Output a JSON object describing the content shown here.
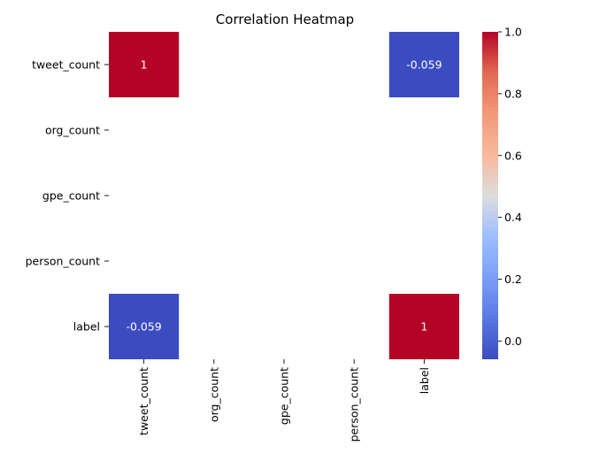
{
  "chart_data": {
    "type": "heatmap",
    "title": "Correlation Heatmap",
    "xlabel": "",
    "ylabel": "",
    "categories": [
      "tweet_count",
      "org_count",
      "gpe_count",
      "person_count",
      "label"
    ],
    "values": [
      [
        1,
        null,
        null,
        null,
        -0.059
      ],
      [
        null,
        null,
        null,
        null,
        null
      ],
      [
        null,
        null,
        null,
        null,
        null
      ],
      [
        null,
        null,
        null,
        null,
        null
      ],
      [
        -0.059,
        null,
        null,
        null,
        1
      ]
    ],
    "cell_labels": [
      [
        "1",
        "",
        "",
        "",
        "-0.059"
      ],
      [
        "",
        "",
        "",
        "",
        ""
      ],
      [
        "",
        "",
        "",
        "",
        ""
      ],
      [
        "",
        "",
        "",
        "",
        ""
      ],
      [
        "-0.059",
        "",
        "",
        "",
        "1"
      ]
    ],
    "colormap": "coolwarm",
    "colorbar": {
      "vmin": -0.059,
      "vmax": 1.0,
      "ticks": [
        0.0,
        0.2,
        0.4,
        0.6,
        0.8,
        1.0
      ],
      "tick_labels": [
        "0.0",
        "0.2",
        "0.4",
        "0.6",
        "0.8",
        "1.0"
      ]
    },
    "colors": {
      "high": "#b40426",
      "low": "#3b4cc0",
      "mid": "#dddddd"
    }
  }
}
